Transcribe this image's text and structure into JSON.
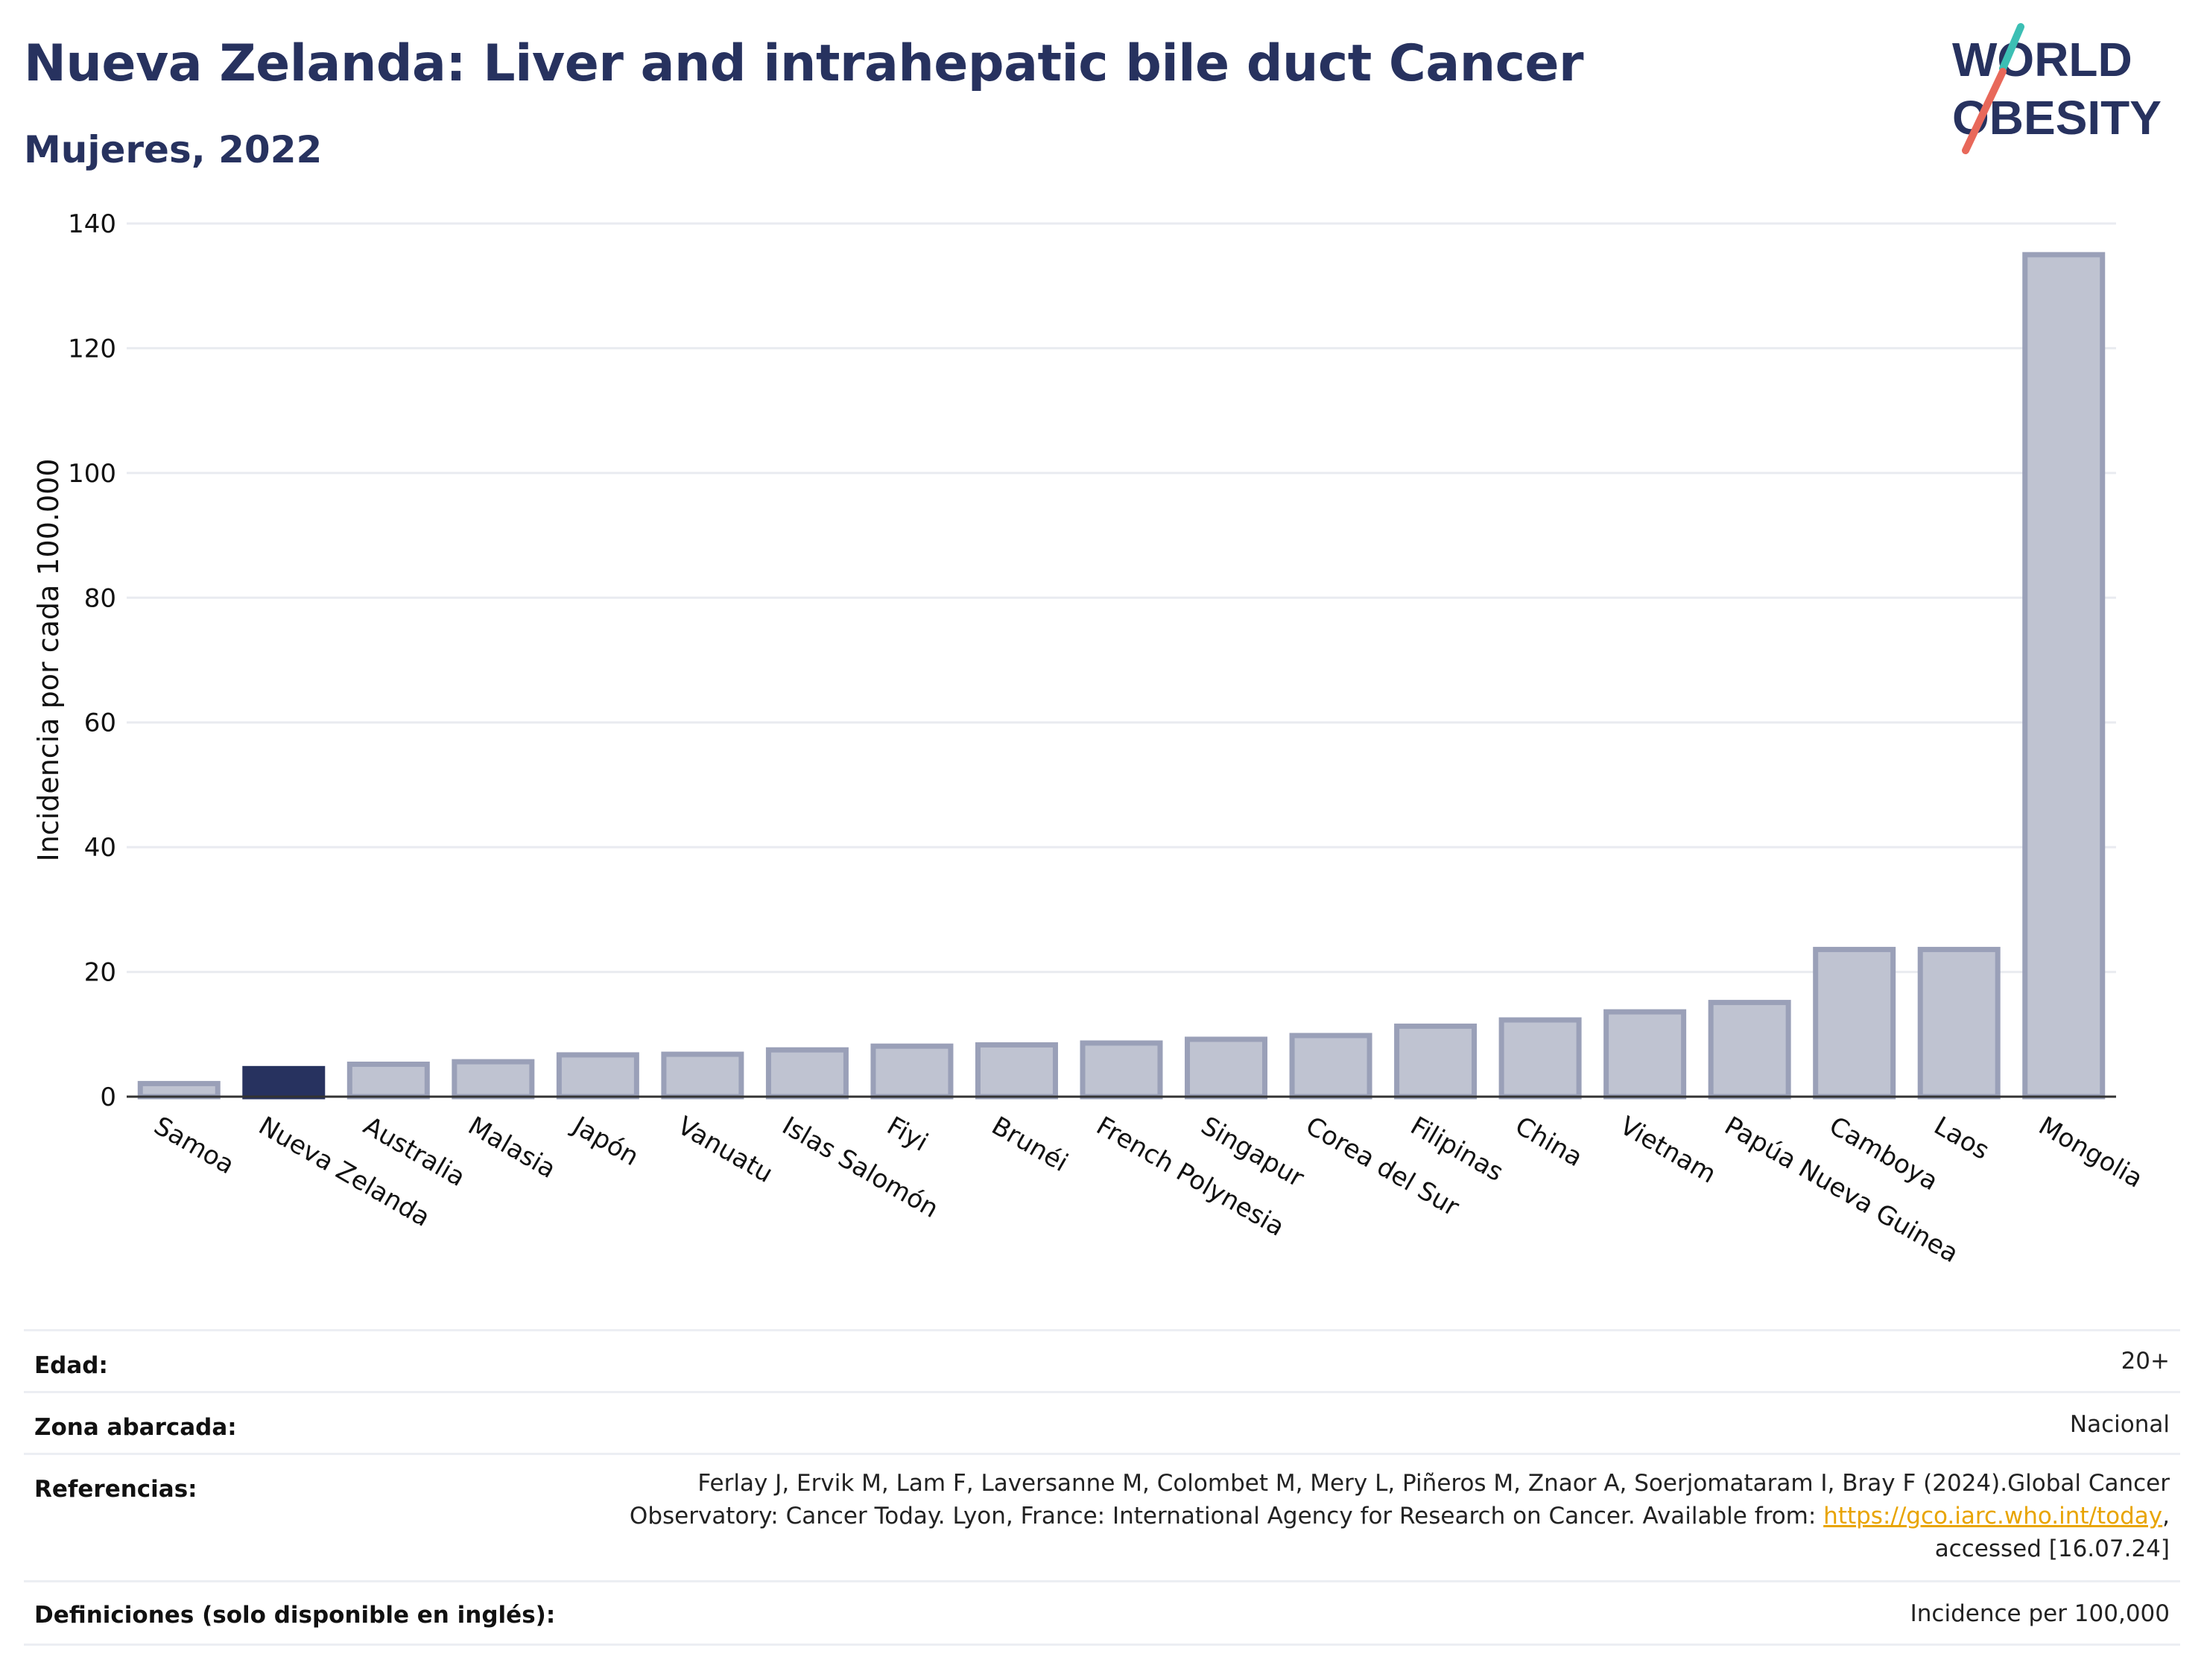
{
  "header": {
    "title": "Nueva Zelanda: Liver and intrahepatic bile duct Cancer",
    "subtitle": "Mujeres, 2022"
  },
  "logo": {
    "line1": "WORLD",
    "line2": "OBESITY"
  },
  "colors": {
    "highlight_bar": "#27325f",
    "bar_fill": "#bfc3d1",
    "bar_stroke": "#9aa0b8",
    "title": "#27325f",
    "logo_teal": "#3cbfb4",
    "logo_red": "#e8685a",
    "link": "#e8a400"
  },
  "chart_data": {
    "type": "bar",
    "ylabel": "Incidencia por cada 100.000",
    "ylim": [
      0,
      140
    ],
    "yticks": [
      0,
      20,
      40,
      60,
      80,
      100,
      120,
      140
    ],
    "grid": true,
    "highlight": "Nueva Zelanda",
    "categories": [
      "Samoa",
      "Nueva Zelanda",
      "Australia",
      "Malasia",
      "Japón",
      "Vanuatu",
      "Islas Salomón",
      "Fiyi",
      "Brunéi",
      "French Polynesia",
      "Singapur",
      "Corea del Sur",
      "Filipinas",
      "China",
      "Vietnam",
      "Papúa Nueva Guinea",
      "Camboya",
      "Laos",
      "Mongolia"
    ],
    "values": [
      2.1,
      4.5,
      5.2,
      5.6,
      6.7,
      6.8,
      7.5,
      8.1,
      8.3,
      8.6,
      9.2,
      9.8,
      11.3,
      12.3,
      13.6,
      15.1,
      23.6,
      23.6,
      135.0
    ]
  },
  "meta": {
    "age_label": "Edad:",
    "age_value": "20+",
    "area_label": "Zona abarcada:",
    "area_value": "Nacional",
    "refs_label": "Referencias:",
    "refs_line1": "Ferlay J, Ervik M, Lam F, Laversanne M, Colombet M, Mery L, Piñeros M, Znaor A, Soerjomataram I, Bray F (2024).Global Cancer",
    "refs_line2": "Observatory: Cancer Today. Lyon, France: International Agency for Research on Cancer. Available from: ",
    "refs_link": "https://gco.iarc.who.int/today",
    "refs_line2_tail": ",",
    "refs_line3": "accessed [16.07.24]",
    "defs_label": "Definiciones (solo disponible en inglés):",
    "defs_value": "Incidence per 100,000"
  }
}
